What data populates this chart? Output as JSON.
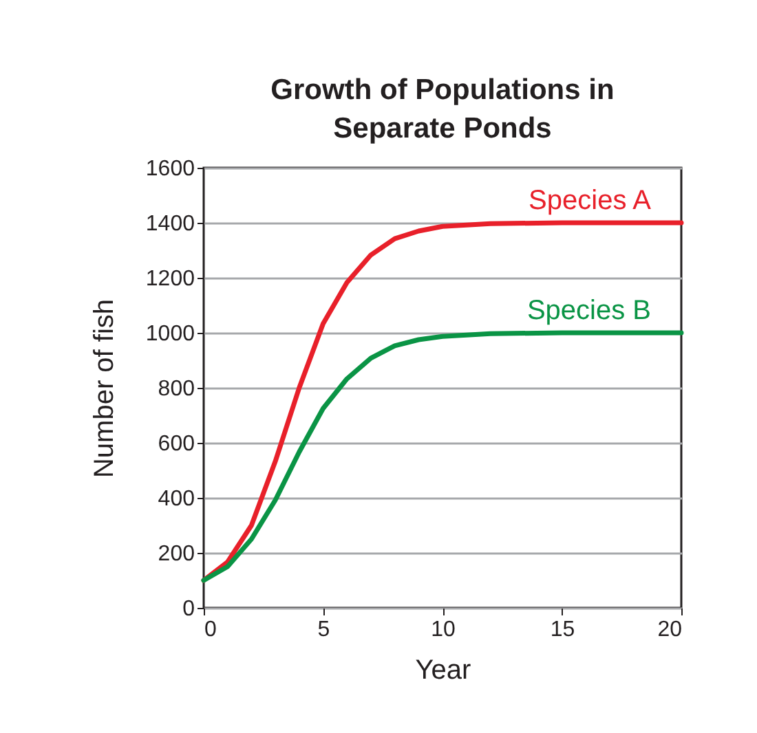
{
  "chart_data": {
    "type": "line",
    "title": "Growth of Populations in Separate Ponds",
    "xlabel": "Year",
    "ylabel": "Number of fish",
    "x": [
      0,
      1,
      2,
      3,
      4,
      5,
      6,
      7,
      8,
      9,
      10,
      12,
      15,
      20
    ],
    "series": [
      {
        "name": "Species A",
        "color": "#e8202a",
        "values": [
          100,
          167,
          300,
          533,
          800,
          1033,
          1183,
          1283,
          1342,
          1370,
          1387,
          1397,
          1400,
          1400
        ]
      },
      {
        "name": "Species B",
        "color": "#0a9445",
        "values": [
          100,
          150,
          250,
          392,
          567,
          725,
          833,
          908,
          953,
          975,
          987,
          997,
          1000,
          1000
        ]
      }
    ],
    "xlim": [
      0,
      20
    ],
    "xticks": [
      0,
      5,
      10,
      15,
      20
    ],
    "ylim": [
      0,
      1600
    ],
    "yticks": [
      0,
      200,
      400,
      600,
      800,
      1000,
      1200,
      1400,
      1600
    ],
    "grid": "y",
    "legend": false,
    "marker": "none",
    "line_style": "solid"
  }
}
